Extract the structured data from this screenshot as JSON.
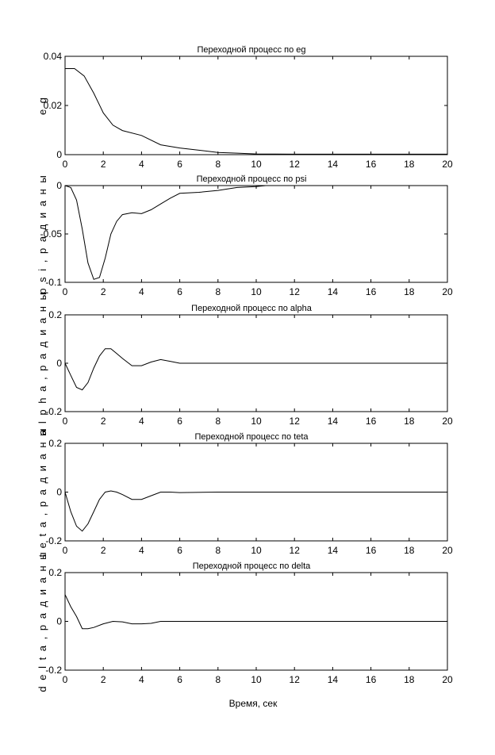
{
  "chart_data": [
    {
      "type": "line",
      "title": "Переходной процесс по eg",
      "ylabel": "e g",
      "xlabel": "",
      "xlim": [
        0,
        20
      ],
      "ylim": [
        0,
        0.04
      ],
      "xticks": [
        "0",
        "2",
        "4",
        "6",
        "8",
        "10",
        "12",
        "14",
        "16",
        "18",
        "20"
      ],
      "yticks": [
        {
          "value": 0,
          "label": "0"
        },
        {
          "value": 0.02,
          "label": "0.02"
        },
        {
          "value": 0.04,
          "label": "0.04"
        }
      ],
      "grid": false,
      "series": [
        {
          "x": [
            0,
            0.5,
            1,
            1.5,
            2,
            2.5,
            3,
            4,
            5,
            6,
            7,
            8,
            9,
            10,
            12,
            14,
            16,
            18,
            20
          ],
          "y": [
            0.035,
            0.035,
            0.032,
            0.025,
            0.017,
            0.012,
            0.0098,
            0.0078,
            0.004,
            0.0027,
            0.0018,
            0.0009,
            0.0006,
            0.0003,
            0.0002,
            0.0002,
            0.0002,
            0.0002,
            0.0002
          ]
        }
      ]
    },
    {
      "type": "line",
      "title": "Переходной процесс по psi",
      "ylabel": "p s i ,  р а д и а н ы",
      "xlabel": "",
      "xlim": [
        0,
        20
      ],
      "ylim": [
        -0.1,
        0
      ],
      "xticks": [
        "0",
        "2",
        "4",
        "6",
        "8",
        "10",
        "12",
        "14",
        "16",
        "18",
        "20"
      ],
      "yticks": [
        {
          "value": -0.1,
          "label": "-0.1"
        },
        {
          "value": -0.05,
          "label": "-0.05"
        },
        {
          "value": 0,
          "label": "0"
        }
      ],
      "grid": false,
      "series": [
        {
          "x": [
            0,
            0.3,
            0.6,
            0.9,
            1.2,
            1.5,
            1.8,
            2.1,
            2.4,
            2.7,
            3,
            3.5,
            4,
            4.5,
            5,
            5.5,
            6,
            7,
            8,
            9,
            10,
            10.5
          ],
          "y": [
            0,
            -0.002,
            -0.015,
            -0.045,
            -0.08,
            -0.097,
            -0.095,
            -0.075,
            -0.05,
            -0.037,
            -0.03,
            -0.028,
            -0.029,
            -0.025,
            -0.019,
            -0.013,
            -0.008,
            -0.007,
            -0.005,
            -0.002,
            -0.001,
            0
          ]
        }
      ]
    },
    {
      "type": "line",
      "title": "Переходной процесс по alpha",
      "ylabel": "a l p h a ,  р а д и а н ы",
      "xlabel": "",
      "xlim": [
        0,
        20
      ],
      "ylim": [
        -0.2,
        0.2
      ],
      "xticks": [
        "0",
        "2",
        "4",
        "6",
        "8",
        "10",
        "12",
        "14",
        "16",
        "18",
        "20"
      ],
      "yticks": [
        {
          "value": -0.2,
          "label": "-0.2"
        },
        {
          "value": 0,
          "label": "0"
        },
        {
          "value": 0.2,
          "label": "0.2"
        }
      ],
      "grid": false,
      "series": [
        {
          "x": [
            0,
            0.3,
            0.6,
            0.9,
            1.2,
            1.5,
            1.8,
            2.1,
            2.4,
            2.7,
            3,
            3.5,
            4,
            4.5,
            5,
            5.5,
            6,
            8,
            10,
            14,
            20
          ],
          "y": [
            0,
            -0.05,
            -0.1,
            -0.11,
            -0.08,
            -0.02,
            0.03,
            0.06,
            0.06,
            0.04,
            0.02,
            -0.01,
            -0.01,
            0.005,
            0.015,
            0.008,
            0,
            0,
            0,
            0,
            0
          ]
        }
      ]
    },
    {
      "type": "line",
      "title": "Переходной процесс по teta",
      "ylabel": "t e t a ,  р а д и а н ы",
      "xlabel": "",
      "xlim": [
        0,
        20
      ],
      "ylim": [
        -0.2,
        0.2
      ],
      "xticks": [
        "0",
        "2",
        "4",
        "6",
        "8",
        "10",
        "12",
        "14",
        "16",
        "18",
        "20"
      ],
      "yticks": [
        {
          "value": -0.2,
          "label": "-0.2"
        },
        {
          "value": 0,
          "label": "0"
        },
        {
          "value": 0.2,
          "label": "0.2"
        }
      ],
      "grid": false,
      "series": [
        {
          "x": [
            0,
            0.3,
            0.6,
            0.9,
            1.2,
            1.5,
            1.8,
            2.1,
            2.4,
            2.7,
            3,
            3.5,
            4,
            4.5,
            5,
            5.5,
            6,
            8,
            10,
            14,
            20
          ],
          "y": [
            0,
            -0.08,
            -0.14,
            -0.16,
            -0.13,
            -0.08,
            -0.03,
            0,
            0.005,
            0,
            -0.01,
            -0.03,
            -0.03,
            -0.015,
            0,
            0,
            -0.002,
            0,
            0,
            0,
            0
          ]
        }
      ]
    },
    {
      "type": "line",
      "title": "Переходной процесс по delta",
      "ylabel": "d e l t a ,  р а д и а н ы",
      "xlabel": "Время, сек",
      "xlim": [
        0,
        20
      ],
      "ylim": [
        -0.2,
        0.2
      ],
      "xticks": [
        "0",
        "2",
        "4",
        "6",
        "8",
        "10",
        "12",
        "14",
        "16",
        "18",
        "20"
      ],
      "yticks": [
        {
          "value": -0.2,
          "label": "-0.2"
        },
        {
          "value": 0,
          "label": "0"
        },
        {
          "value": 0.2,
          "label": "0.2"
        }
      ],
      "grid": false,
      "series": [
        {
          "x": [
            0,
            0.3,
            0.6,
            0.9,
            1.2,
            1.5,
            2,
            2.5,
            3,
            3.5,
            4,
            4.5,
            5,
            6,
            8,
            10,
            14,
            20
          ],
          "y": [
            0.11,
            0.06,
            0.02,
            -0.03,
            -0.03,
            -0.025,
            -0.01,
            0,
            -0.002,
            -0.01,
            -0.01,
            -0.008,
            0,
            0,
            0,
            0,
            0,
            0
          ]
        }
      ]
    }
  ]
}
